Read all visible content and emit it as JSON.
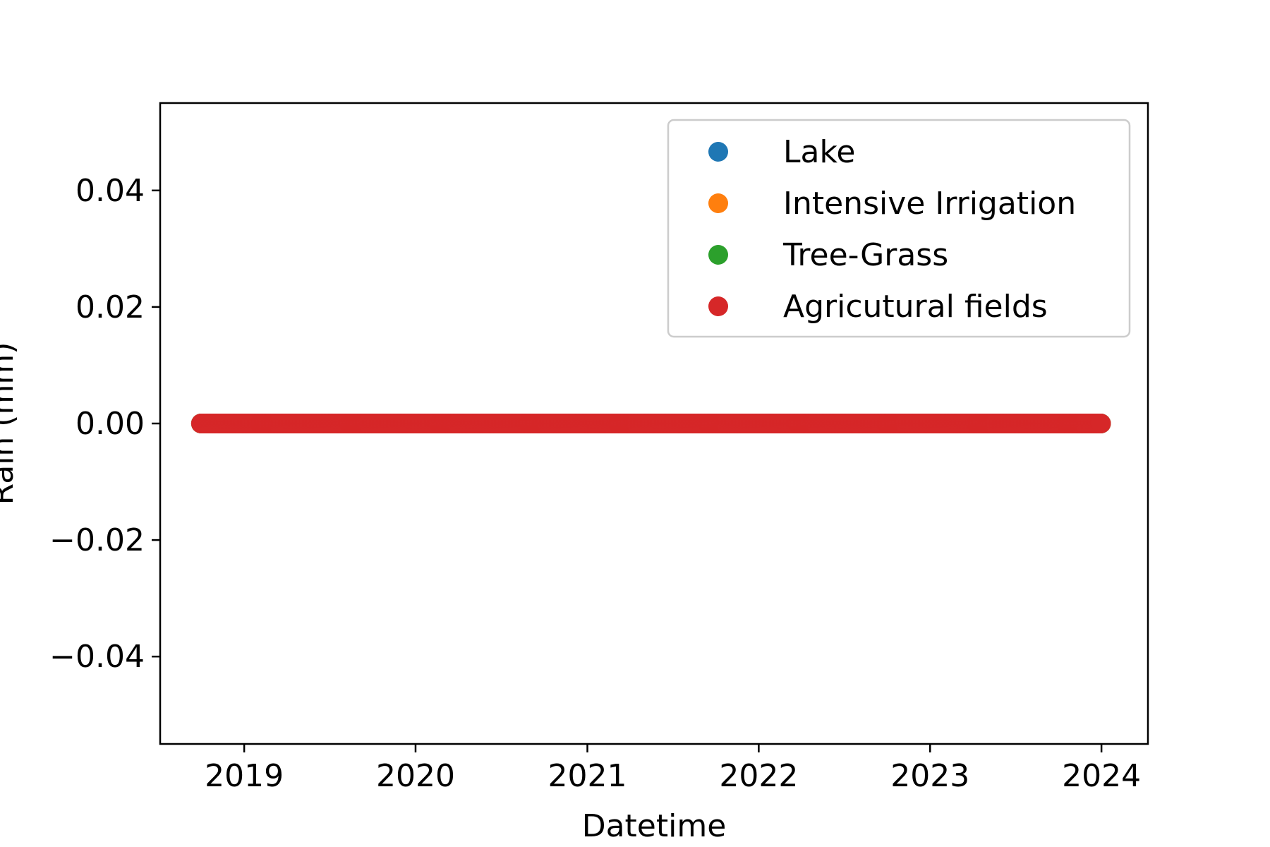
{
  "chart_data": {
    "type": "scatter",
    "title": "",
    "xlabel": "Datetime",
    "ylabel": "Rain (mm)",
    "x_tick_labels": [
      "2019",
      "2020",
      "2021",
      "2022",
      "2023",
      "2024"
    ],
    "y_tick_labels": [
      "0.04",
      "0.02",
      "0.00",
      "−0.02",
      "−0.04"
    ],
    "y_ticks": [
      0.04,
      0.02,
      0.0,
      -0.02,
      -0.04
    ],
    "xlim": [
      "2018-07-06",
      "2024-04-09"
    ],
    "ylim": [
      -0.055,
      0.055
    ],
    "grid": false,
    "legend_position": "upper right",
    "series": [
      {
        "name": "Lake",
        "color": "#1f77b4",
        "x_range": [
          "2018-10-01",
          "2023-12-31"
        ],
        "y_constant": 0.0
      },
      {
        "name": "Intensive Irrigation",
        "color": "#ff7f0e",
        "x_range": [
          "2018-10-01",
          "2023-12-31"
        ],
        "y_constant": 0.0
      },
      {
        "name": "Tree-Grass",
        "color": "#2ca02c",
        "x_range": [
          "2018-10-01",
          "2023-12-31"
        ],
        "y_constant": 0.0
      },
      {
        "name": "Agricutural fields",
        "color": "#d62728",
        "x_range": [
          "2018-10-01",
          "2023-12-31"
        ],
        "y_constant": 0.0
      }
    ]
  }
}
